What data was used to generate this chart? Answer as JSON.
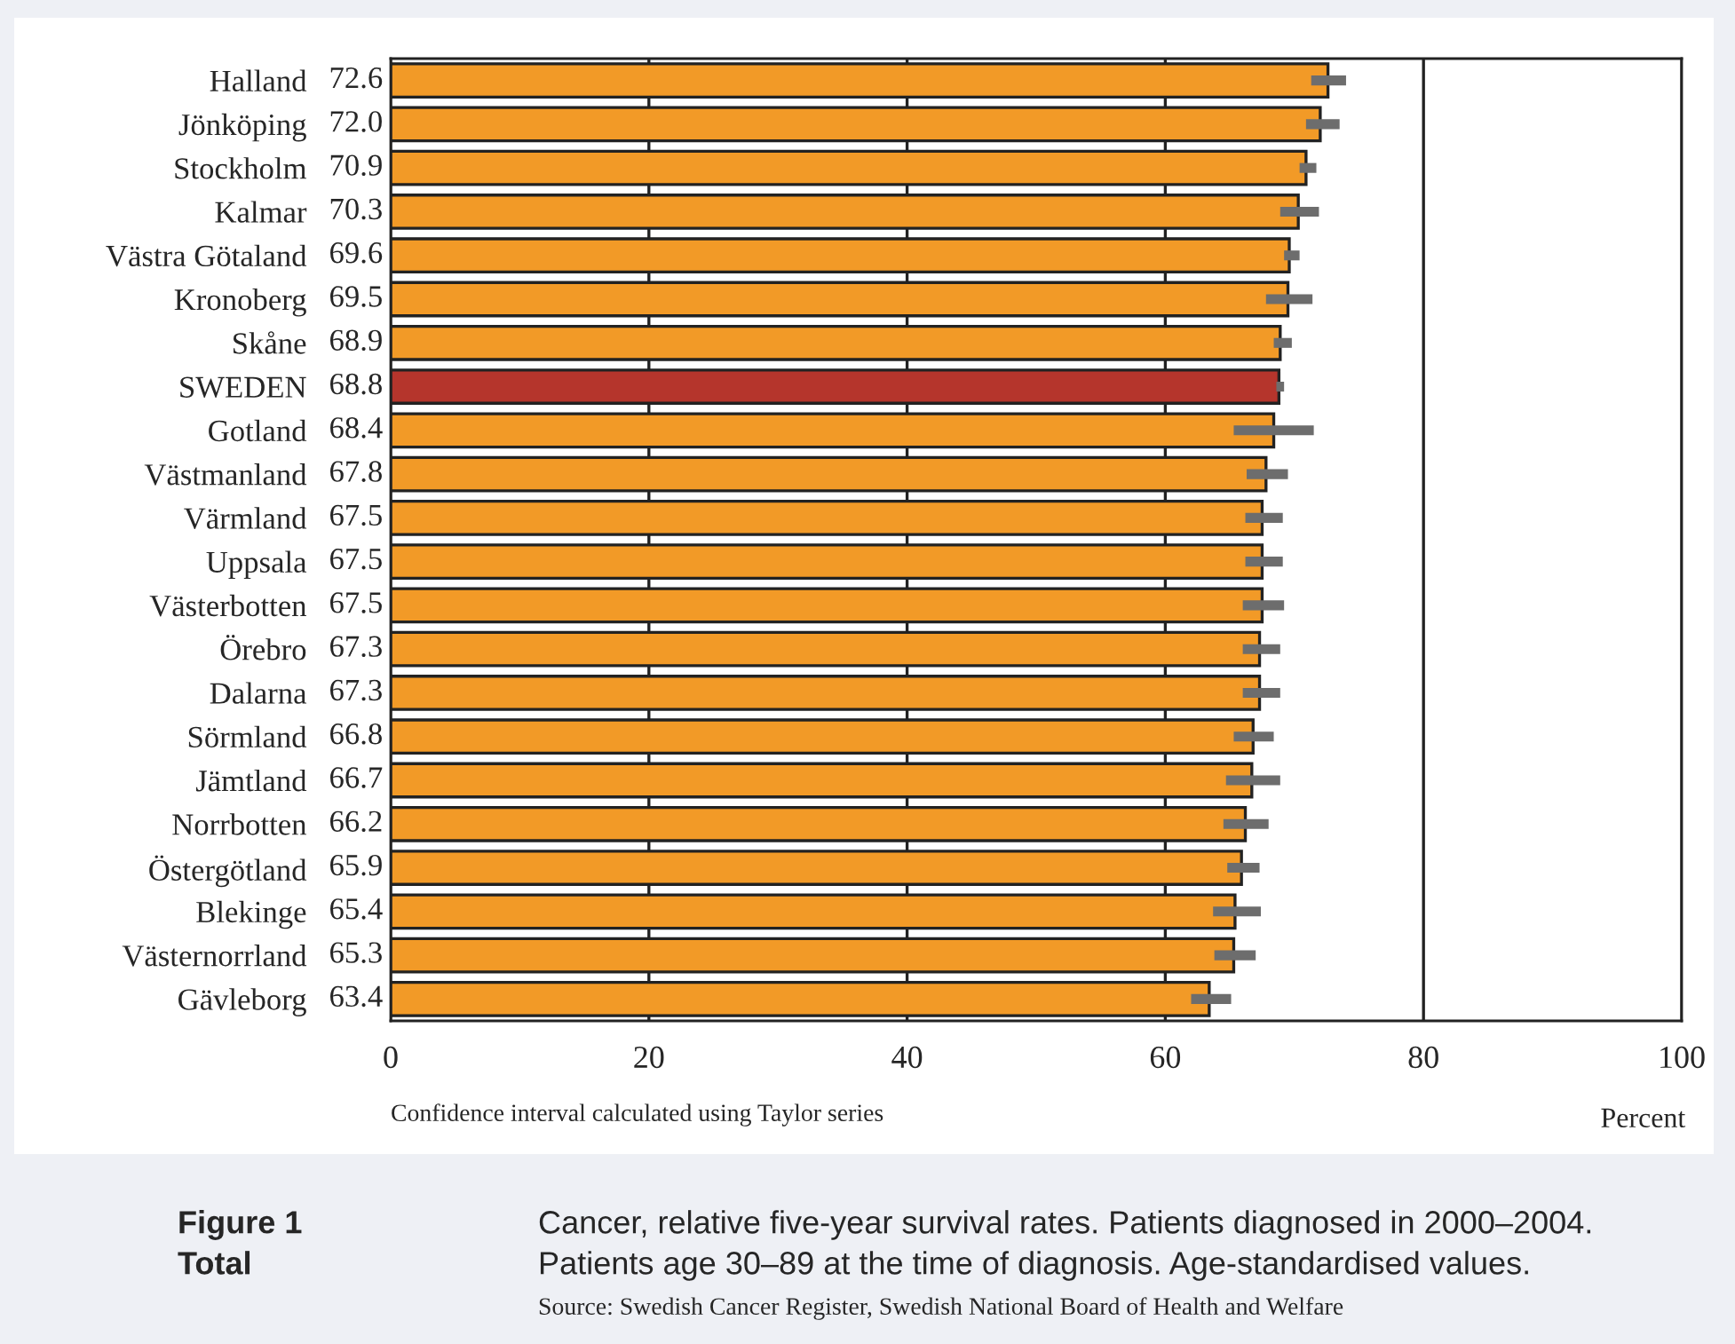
{
  "chart_data": {
    "type": "bar",
    "orientation": "horizontal",
    "xlabel": "Percent",
    "categories": [
      "Halland",
      "Jönköping",
      "Stockholm",
      "Kalmar",
      "Västra Götaland",
      "Kronoberg",
      "Skåne",
      "SWEDEN",
      "Gotland",
      "Västmanland",
      "Värmland",
      "Uppsala",
      "Västerbotten",
      "Örebro",
      "Dalarna",
      "Sörmland",
      "Jämtland",
      "Norrbotten",
      "Östergötland",
      "Blekinge",
      "Västernorrland",
      "Gävleborg"
    ],
    "values": [
      72.6,
      72.0,
      70.9,
      70.3,
      69.6,
      69.5,
      68.9,
      68.8,
      68.4,
      67.8,
      67.5,
      67.5,
      67.5,
      67.3,
      67.3,
      66.8,
      66.7,
      66.2,
      65.9,
      65.4,
      65.3,
      63.4
    ],
    "colors": [
      "#f29a27",
      "#f29a27",
      "#f29a27",
      "#f29a27",
      "#f29a27",
      "#f29a27",
      "#f29a27",
      "#b5352c",
      "#f29a27",
      "#f29a27",
      "#f29a27",
      "#f29a27",
      "#f29a27",
      "#f29a27",
      "#f29a27",
      "#f29a27",
      "#f29a27",
      "#f29a27",
      "#f29a27",
      "#f29a27",
      "#f29a27",
      "#f29a27"
    ],
    "errors": [
      [
        71.3,
        74.0
      ],
      [
        70.9,
        73.5
      ],
      [
        70.4,
        71.7
      ],
      [
        68.9,
        71.9
      ],
      [
        69.2,
        70.4
      ],
      [
        67.8,
        71.4
      ],
      [
        68.4,
        69.8
      ],
      [
        68.6,
        69.2
      ],
      [
        65.3,
        71.5
      ],
      [
        66.3,
        69.5
      ],
      [
        66.2,
        69.1
      ],
      [
        66.2,
        69.1
      ],
      [
        66.0,
        69.2
      ],
      [
        66.0,
        68.9
      ],
      [
        66.0,
        68.9
      ],
      [
        65.3,
        68.4
      ],
      [
        64.7,
        68.9
      ],
      [
        64.5,
        68.0
      ],
      [
        64.8,
        67.3
      ],
      [
        63.7,
        67.4
      ],
      [
        63.8,
        67.0
      ],
      [
        62.0,
        65.1
      ]
    ],
    "value_labels": [
      "72.6",
      "72.0",
      "70.9",
      "70.3",
      "69.6",
      "69.5",
      "68.9",
      "68.8",
      "68.4",
      "67.8",
      "67.5",
      "67.5",
      "67.5",
      "67.3",
      "67.3",
      "66.8",
      "66.7",
      "66.2",
      "65.9",
      "65.4",
      "65.3",
      "63.4"
    ],
    "xlim": [
      0,
      100
    ],
    "xticks": [
      0,
      20,
      40,
      60,
      80,
      100
    ],
    "grid": "x",
    "annotations": [
      "Confidence interval calculated using Taylor series",
      "Figure 1",
      "Total",
      "Cancer, relative five-year survival rates. Patients diagnosed in 2000–2004.",
      "Patients age 30–89 at the time of diagnosis. Age-standardised values.",
      "Source: Swedish Cancer Register, Swedish National Board of Health and Welfare"
    ]
  }
}
